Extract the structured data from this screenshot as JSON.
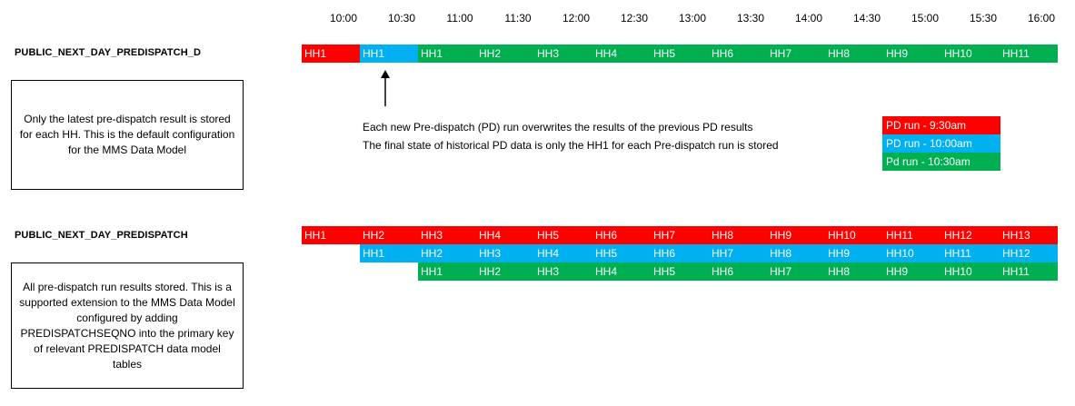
{
  "timeline": {
    "times": [
      "10:00",
      "10:30",
      "11:00",
      "11:30",
      "12:00",
      "12:30",
      "13:00",
      "13:30",
      "14:00",
      "14:30",
      "15:00",
      "15:30",
      "16:00"
    ]
  },
  "colors": {
    "pd_930": "#ff0000",
    "pd_1000": "#00b0f0",
    "pd_1030": "#00b050"
  },
  "section1": {
    "label": "PUBLIC_NEXT_DAY_PREDISPATCH_D",
    "row": [
      {
        "text": "HH1",
        "color": "red"
      },
      {
        "text": "HH1",
        "color": "blue"
      },
      {
        "text": "HH1",
        "color": "green"
      },
      {
        "text": "HH2",
        "color": "green"
      },
      {
        "text": "HH3",
        "color": "green"
      },
      {
        "text": "HH4",
        "color": "green"
      },
      {
        "text": "HH5",
        "color": "green"
      },
      {
        "text": "HH6",
        "color": "green"
      },
      {
        "text": "HH7",
        "color": "green"
      },
      {
        "text": "HH8",
        "color": "green"
      },
      {
        "text": "HH9",
        "color": "green"
      },
      {
        "text": "HH10",
        "color": "green"
      },
      {
        "text": "HH11",
        "color": "green"
      }
    ],
    "note": "Only the latest pre-dispatch result is stored for each HH. This is the default configuration for the MMS Data Model"
  },
  "description": {
    "line1": "Each new Pre-dispatch (PD) run overwrites the results of the previous PD results",
    "line2": "The final state of historical PD data is only the HH1 for each Pre-dispatch run is stored"
  },
  "legend": [
    {
      "label": "PD run - 9:30am",
      "color": "red"
    },
    {
      "label": "PD run - 10:00am",
      "color": "blue"
    },
    {
      "label": "Pd run - 10:30am",
      "color": "green"
    }
  ],
  "section2": {
    "label": "PUBLIC_NEXT_DAY_PREDISPATCH",
    "rows": [
      {
        "color": "red",
        "offset": 0,
        "cells": [
          "HH1",
          "HH2",
          "HH3",
          "HH4",
          "HH5",
          "HH6",
          "HH7",
          "HH8",
          "HH9",
          "HH10",
          "HH11",
          "HH12",
          "HH13"
        ]
      },
      {
        "color": "blue",
        "offset": 1,
        "cells": [
          "HH1",
          "HH2",
          "HH3",
          "HH4",
          "HH5",
          "HH6",
          "HH7",
          "HH8",
          "HH9",
          "HH10",
          "HH11",
          "HH12"
        ]
      },
      {
        "color": "green",
        "offset": 2,
        "cells": [
          "HH1",
          "HH2",
          "HH3",
          "HH4",
          "HH5",
          "HH6",
          "HH7",
          "HH8",
          "HH9",
          "HH10",
          "HH11"
        ]
      }
    ],
    "note": "All pre-dispatch run results stored. This is a supported extension to the MMS Data Model configured by adding PREDISPATCHSEQNO into the primary key of relevant PREDISPATCH data model tables"
  }
}
